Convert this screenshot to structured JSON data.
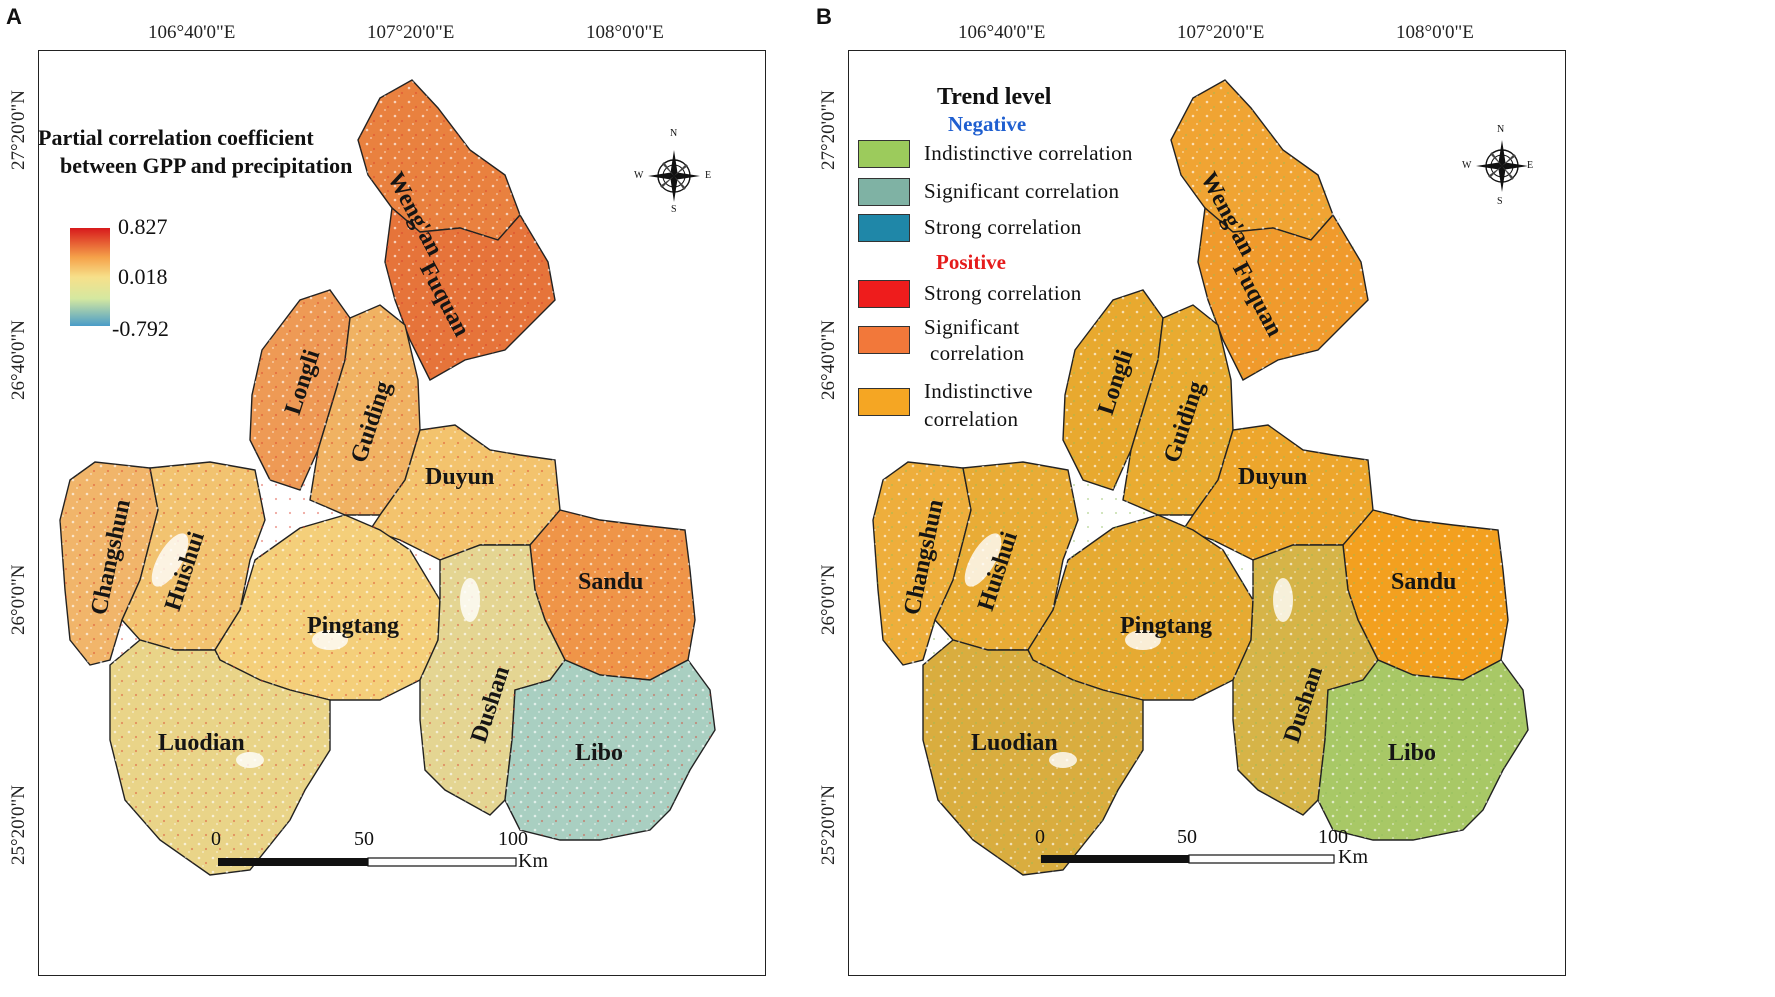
{
  "panels": {
    "a": {
      "letter": "A",
      "lon_labels": [
        "106°40'0\"E",
        "107°20'0\"E",
        "108°0'0\"E"
      ],
      "lat_labels": [
        "27°20'0\"N",
        "26°40'0\"N",
        "26°0'0\"N",
        "25°20'0\"N"
      ],
      "legend_title_line1": "Partial correlation coefficient",
      "legend_title_line2": "between GPP and precipitation",
      "colorbar": {
        "max": "0.827",
        "mid": "0.018",
        "min": "-0.792",
        "colors": [
          "#d7191c",
          "#f5a24a",
          "#f7e08a",
          "#d5e8a0",
          "#4a9cc8"
        ]
      },
      "scalebar": {
        "ticks": [
          "0",
          "50",
          "100"
        ],
        "unit": "Km"
      },
      "compass": {
        "n": "N",
        "s": "S",
        "e": "E",
        "w": "W"
      }
    },
    "b": {
      "letter": "B",
      "lon_labels": [
        "106°40'0\"E",
        "107°20'0\"E",
        "108°0'0\"E"
      ],
      "lat_labels": [
        "27°20'0\"N",
        "26°40'0\"N",
        "26°0'0\"N",
        "25°20'0\"N"
      ],
      "legend": {
        "title": "Trend level",
        "negative_label": "Negative",
        "positive_label": "Positive",
        "negative_items": [
          {
            "label": "Indistinctive  correlation",
            "color": "#9ccb5c"
          },
          {
            "label": "Significant  correlation",
            "color": "#7fb2a4"
          },
          {
            "label": "Strong  correlation",
            "color": "#1f87a8"
          }
        ],
        "positive_items": [
          {
            "label": "Strong  correlation",
            "color": "#ee1c1c"
          },
          {
            "label_line1": "Significant",
            "label_line2": "correlation",
            "color": "#f2783a"
          },
          {
            "label_line1": "Indistinctive",
            "label_line2": "correlation",
            "color": "#f5a623"
          }
        ]
      },
      "scalebar": {
        "ticks": [
          "0",
          "50",
          "100"
        ],
        "unit": "Km"
      },
      "compass": {
        "n": "N",
        "s": "S",
        "e": "E",
        "w": "W"
      }
    }
  },
  "counties": [
    "Weng'an",
    "Fuquan",
    "Longli",
    "Guiding",
    "Duyun",
    "Changshun",
    "Huishui",
    "Pingtang",
    "Sandu",
    "Dushan",
    "Luodian",
    "Libo"
  ],
  "map_colors": {
    "a": {
      "north": "#e8773a",
      "central": "#f1c66a",
      "southeast": "#8fc4c2",
      "sandu": "#f09a4c",
      "base": "#f4d98a"
    },
    "b": {
      "main": "#eda72b",
      "south": "#a6c26a",
      "libo": "#9cc766",
      "north": "#f0a02e"
    }
  }
}
